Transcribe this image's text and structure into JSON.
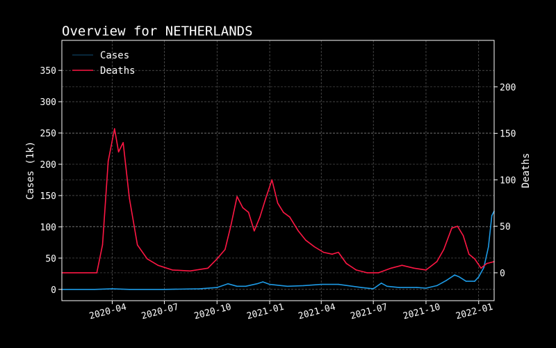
{
  "chart_data": {
    "type": "line",
    "title": "Overview for NETHERLANDS",
    "ylabel_left": "Cases (1k)",
    "ylabel_right": "Deaths",
    "xlim": [
      "2020-01-04",
      "2022-01-28"
    ],
    "ylim_left": [
      -18,
      398
    ],
    "ylim_right": [
      -30,
      250
    ],
    "x_ticks": [
      "2020-04-01",
      "2020-07-01",
      "2020-10-01",
      "2021-01-01",
      "2021-04-01",
      "2021-07-01",
      "2021-10-01",
      "2022-01-01"
    ],
    "x_tick_labels": [
      "2020-04",
      "2020-07",
      "2020-10",
      "2021-01",
      "2021-04",
      "2021-07",
      "2021-10",
      "2022-01"
    ],
    "y_ticks_left": [
      0,
      50,
      100,
      150,
      200,
      250,
      300,
      350
    ],
    "y_ticks_right": [
      0,
      50,
      100,
      150,
      200
    ],
    "grid": true,
    "legend_position": "top-left",
    "colors": {
      "cases": "#1e9be6",
      "deaths": "#ff1744",
      "grid": "#bbbbbb",
      "axes": "#ffffff"
    },
    "series": [
      {
        "name": "Cases",
        "axis": "left",
        "x": [
          "2020-01-04",
          "2020-03-01",
          "2020-04-01",
          "2020-05-01",
          "2020-07-01",
          "2020-09-01",
          "2020-10-01",
          "2020-10-20",
          "2020-11-05",
          "2020-11-20",
          "2020-12-10",
          "2020-12-20",
          "2021-01-01",
          "2021-02-01",
          "2021-03-01",
          "2021-04-01",
          "2021-05-01",
          "2021-06-10",
          "2021-07-01",
          "2021-07-15",
          "2021-07-25",
          "2021-08-15",
          "2021-09-15",
          "2021-10-01",
          "2021-10-20",
          "2021-11-05",
          "2021-11-20",
          "2021-11-28",
          "2021-12-10",
          "2021-12-25",
          "2022-01-01",
          "2022-01-10",
          "2022-01-18",
          "2022-01-24",
          "2022-01-28"
        ],
        "y": [
          0,
          0,
          1,
          0,
          0,
          1,
          3,
          9,
          5,
          5,
          9,
          12,
          8,
          5,
          6,
          8,
          8,
          3,
          1,
          10,
          5,
          3,
          3,
          2,
          6,
          14,
          23,
          20,
          13,
          13,
          20,
          35,
          68,
          118,
          125
        ]
      },
      {
        "name": "Deaths",
        "axis": "right",
        "x": [
          "2020-01-04",
          "2020-03-05",
          "2020-03-15",
          "2020-03-25",
          "2020-04-05",
          "2020-04-12",
          "2020-04-20",
          "2020-05-01",
          "2020-05-15",
          "2020-06-01",
          "2020-06-20",
          "2020-07-15",
          "2020-08-15",
          "2020-09-15",
          "2020-10-01",
          "2020-10-15",
          "2020-10-25",
          "2020-11-05",
          "2020-11-15",
          "2020-11-25",
          "2020-12-05",
          "2020-12-15",
          "2020-12-25",
          "2021-01-05",
          "2021-01-15",
          "2021-01-25",
          "2021-02-05",
          "2021-02-20",
          "2021-03-05",
          "2021-03-20",
          "2021-04-05",
          "2021-04-20",
          "2021-05-01",
          "2021-05-15",
          "2021-06-01",
          "2021-06-20",
          "2021-07-10",
          "2021-08-01",
          "2021-08-20",
          "2021-09-10",
          "2021-10-01",
          "2021-10-20",
          "2021-11-01",
          "2021-11-15",
          "2021-11-25",
          "2021-12-05",
          "2021-12-15",
          "2021-12-25",
          "2022-01-05",
          "2022-01-15",
          "2022-01-28"
        ],
        "y": [
          0,
          0,
          30,
          120,
          155,
          130,
          140,
          80,
          30,
          15,
          8,
          3,
          2,
          5,
          15,
          25,
          50,
          82,
          70,
          65,
          45,
          60,
          80,
          100,
          75,
          65,
          60,
          45,
          35,
          28,
          22,
          20,
          22,
          10,
          3,
          0,
          0,
          5,
          8,
          5,
          3,
          12,
          25,
          48,
          50,
          40,
          20,
          15,
          5,
          10,
          12
        ]
      }
    ]
  }
}
